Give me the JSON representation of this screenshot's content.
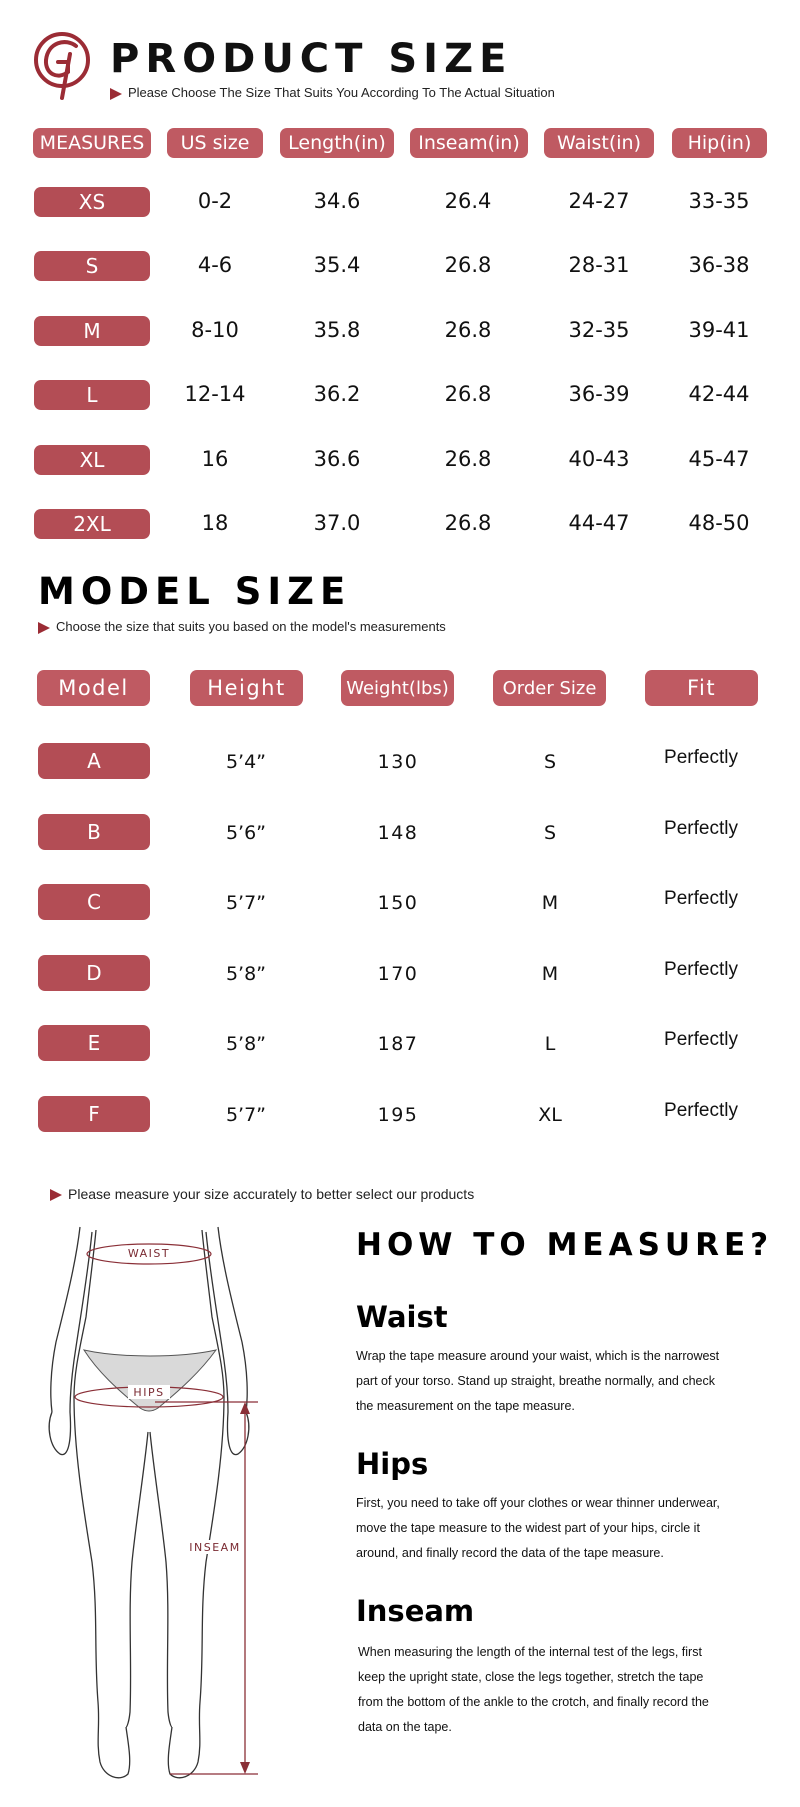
{
  "product": {
    "title": "PRODUCT SIZE",
    "subtitle": "Please Choose The Size That Suits You According To The Actual Situation",
    "headers": [
      "MEASURES",
      "US size",
      "Length(in)",
      "Inseam(in)",
      "Waist(in)",
      "Hip(in)"
    ],
    "rows": [
      {
        "size": "XS",
        "us": "0-2",
        "length": "34.6",
        "inseam": "26.4",
        "waist": "24-27",
        "hip": "33-35"
      },
      {
        "size": "S",
        "us": "4-6",
        "length": "35.4",
        "inseam": "26.8",
        "waist": "28-31",
        "hip": "36-38"
      },
      {
        "size": "M",
        "us": "8-10",
        "length": "35.8",
        "inseam": "26.8",
        "waist": "32-35",
        "hip": "39-41"
      },
      {
        "size": "L",
        "us": "12-14",
        "length": "36.2",
        "inseam": "26.8",
        "waist": "36-39",
        "hip": "42-44"
      },
      {
        "size": "XL",
        "us": "16",
        "length": "36.6",
        "inseam": "26.8",
        "waist": "40-43",
        "hip": "45-47"
      },
      {
        "size": "2XL",
        "us": "18",
        "length": "37.0",
        "inseam": "26.8",
        "waist": "44-47",
        "hip": "48-50"
      }
    ]
  },
  "model": {
    "title": "MODEL SIZE",
    "subtitle": "Choose the size that suits you based on the model's measurements",
    "headers": [
      "Model",
      "Height",
      "Weight(lbs)",
      "Order Size",
      "Fit"
    ],
    "rows": [
      {
        "model": "A",
        "height": "5’4”",
        "weight": "130",
        "order": "S",
        "fit": "Perfectly"
      },
      {
        "model": "B",
        "height": "5’6”",
        "weight": "148",
        "order": "S",
        "fit": "Perfectly"
      },
      {
        "model": "C",
        "height": "5’7”",
        "weight": "150",
        "order": "M",
        "fit": "Perfectly"
      },
      {
        "model": "D",
        "height": "5’8”",
        "weight": "170",
        "order": "M",
        "fit": "Perfectly"
      },
      {
        "model": "E",
        "height": "5’8”",
        "weight": "187",
        "order": "L",
        "fit": "Perfectly"
      },
      {
        "model": "F",
        "height": "5’7”",
        "weight": "195",
        "order": "XL",
        "fit": "Perfectly"
      }
    ]
  },
  "measure": {
    "intro": "Please measure your size accurately to better select our products",
    "title": "HOW TO MEASURE?",
    "diagram_labels": {
      "waist": "WAIST",
      "hips": "HIPS",
      "inseam": "INSEAM"
    },
    "sections": [
      {
        "heading": "Waist",
        "lines": [
          "Wrap the tape measure around your waist, which is the narrowest",
          "part of your torso. Stand up straight, breathe normally, and check",
          "the measurement on the tape measure."
        ]
      },
      {
        "heading": "Hips",
        "lines": [
          "First, you need to take off your clothes or wear thinner underwear,",
          "move the tape measure to the widest part of your hips, circle it",
          "around, and finally record the data of the tape measure."
        ]
      },
      {
        "heading": "Inseam",
        "lines": [
          "When measuring the length of the internal test of the legs, first",
          "keep the upright state, close the legs together, stretch the tape",
          "from the bottom of the ankle to the crotch, and finally record the",
          "data on the tape."
        ]
      }
    ]
  },
  "colors": {
    "accent": "#bf5a62",
    "row_pill": "#b34d55",
    "arrow": "#9b2c35"
  }
}
